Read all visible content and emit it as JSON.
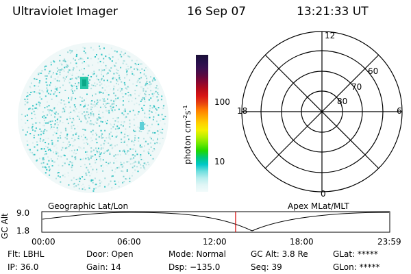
{
  "header": {
    "title": "Ultraviolet Imager",
    "date": "16 Sep 07",
    "time": "13:21:33 UT"
  },
  "colorbar": {
    "label_main": "photon cm",
    "label_exp1": "-2",
    "label_mid": "s",
    "label_exp2": "-1",
    "ticks": [
      "100",
      "10"
    ],
    "colors": [
      "#1a1036",
      "#26104a",
      "#3a1050",
      "#5a0a40",
      "#8a0630",
      "#b50a1a",
      "#d81414",
      "#e64010",
      "#ff7a00",
      "#ffa800",
      "#ffd200",
      "#f4f000",
      "#b8f000",
      "#6ee800",
      "#1fd800",
      "#00c87a",
      "#00c8c8",
      "#6fdede",
      "#b8eeee",
      "#e0f6f6",
      "#f2fbfb"
    ]
  },
  "polar": {
    "labels": {
      "top": "12",
      "bottom": "0",
      "left": "18",
      "right": "6"
    },
    "lat_labels": [
      "60",
      "70",
      "80"
    ]
  },
  "timeline": {
    "left_label": "Geographic Lat/Lon",
    "right_label": "Apex MLat/MLT",
    "yaxis_title": "GC Alt",
    "y_ticks": [
      "9.0",
      "1.8"
    ],
    "x_ticks": [
      "00:00",
      "06:00",
      "12:00",
      "18:00",
      "23:59"
    ],
    "current_time_fraction": 0.557,
    "marker_color": "#d40000"
  },
  "info": {
    "flt": "Flt: LBHL",
    "ip": "IP: 36.0",
    "door": "Door: Open",
    "gain": "Gain: 14",
    "mode": "Mode: Normal",
    "dsp": "Dsp: −135.0",
    "gc_alt": "GC Alt: 3.8 Re",
    "seq": "Seq: 39",
    "glat": "GLat: *****",
    "glon": "GLon: *****"
  }
}
